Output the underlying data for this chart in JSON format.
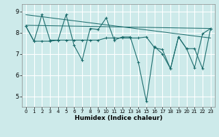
{
  "xlabel": "Humidex (Indice chaleur)",
  "bg_color": "#cdeaea",
  "grid_color": "#b8d8d8",
  "line_color": "#1a6b6b",
  "xlim": [
    -0.5,
    23.5
  ],
  "ylim": [
    4.5,
    9.35
  ],
  "yticks": [
    5,
    6,
    7,
    8,
    9
  ],
  "xticks": [
    0,
    1,
    2,
    3,
    4,
    5,
    6,
    7,
    8,
    9,
    10,
    11,
    12,
    13,
    14,
    15,
    16,
    17,
    18,
    19,
    20,
    21,
    22,
    23
  ],
  "line1_y": [
    8.3,
    7.6,
    8.85,
    7.65,
    7.65,
    8.85,
    7.4,
    6.7,
    8.2,
    8.15,
    8.7,
    7.65,
    7.8,
    7.8,
    6.6,
    4.75,
    7.35,
    7.0,
    6.3,
    7.8,
    7.25,
    6.35,
    7.95,
    8.2
  ],
  "line2_y": [
    8.3,
    7.6,
    7.6,
    7.6,
    7.65,
    7.65,
    7.65,
    7.65,
    7.65,
    7.65,
    7.75,
    7.75,
    7.75,
    7.75,
    7.75,
    7.8,
    7.3,
    7.2,
    6.3,
    7.8,
    7.25,
    7.25,
    6.3,
    8.2
  ],
  "trend1_x": [
    0,
    23
  ],
  "trend1_y": [
    8.85,
    7.75
  ],
  "trend2_x": [
    0,
    23
  ],
  "trend2_y": [
    8.35,
    8.2
  ]
}
